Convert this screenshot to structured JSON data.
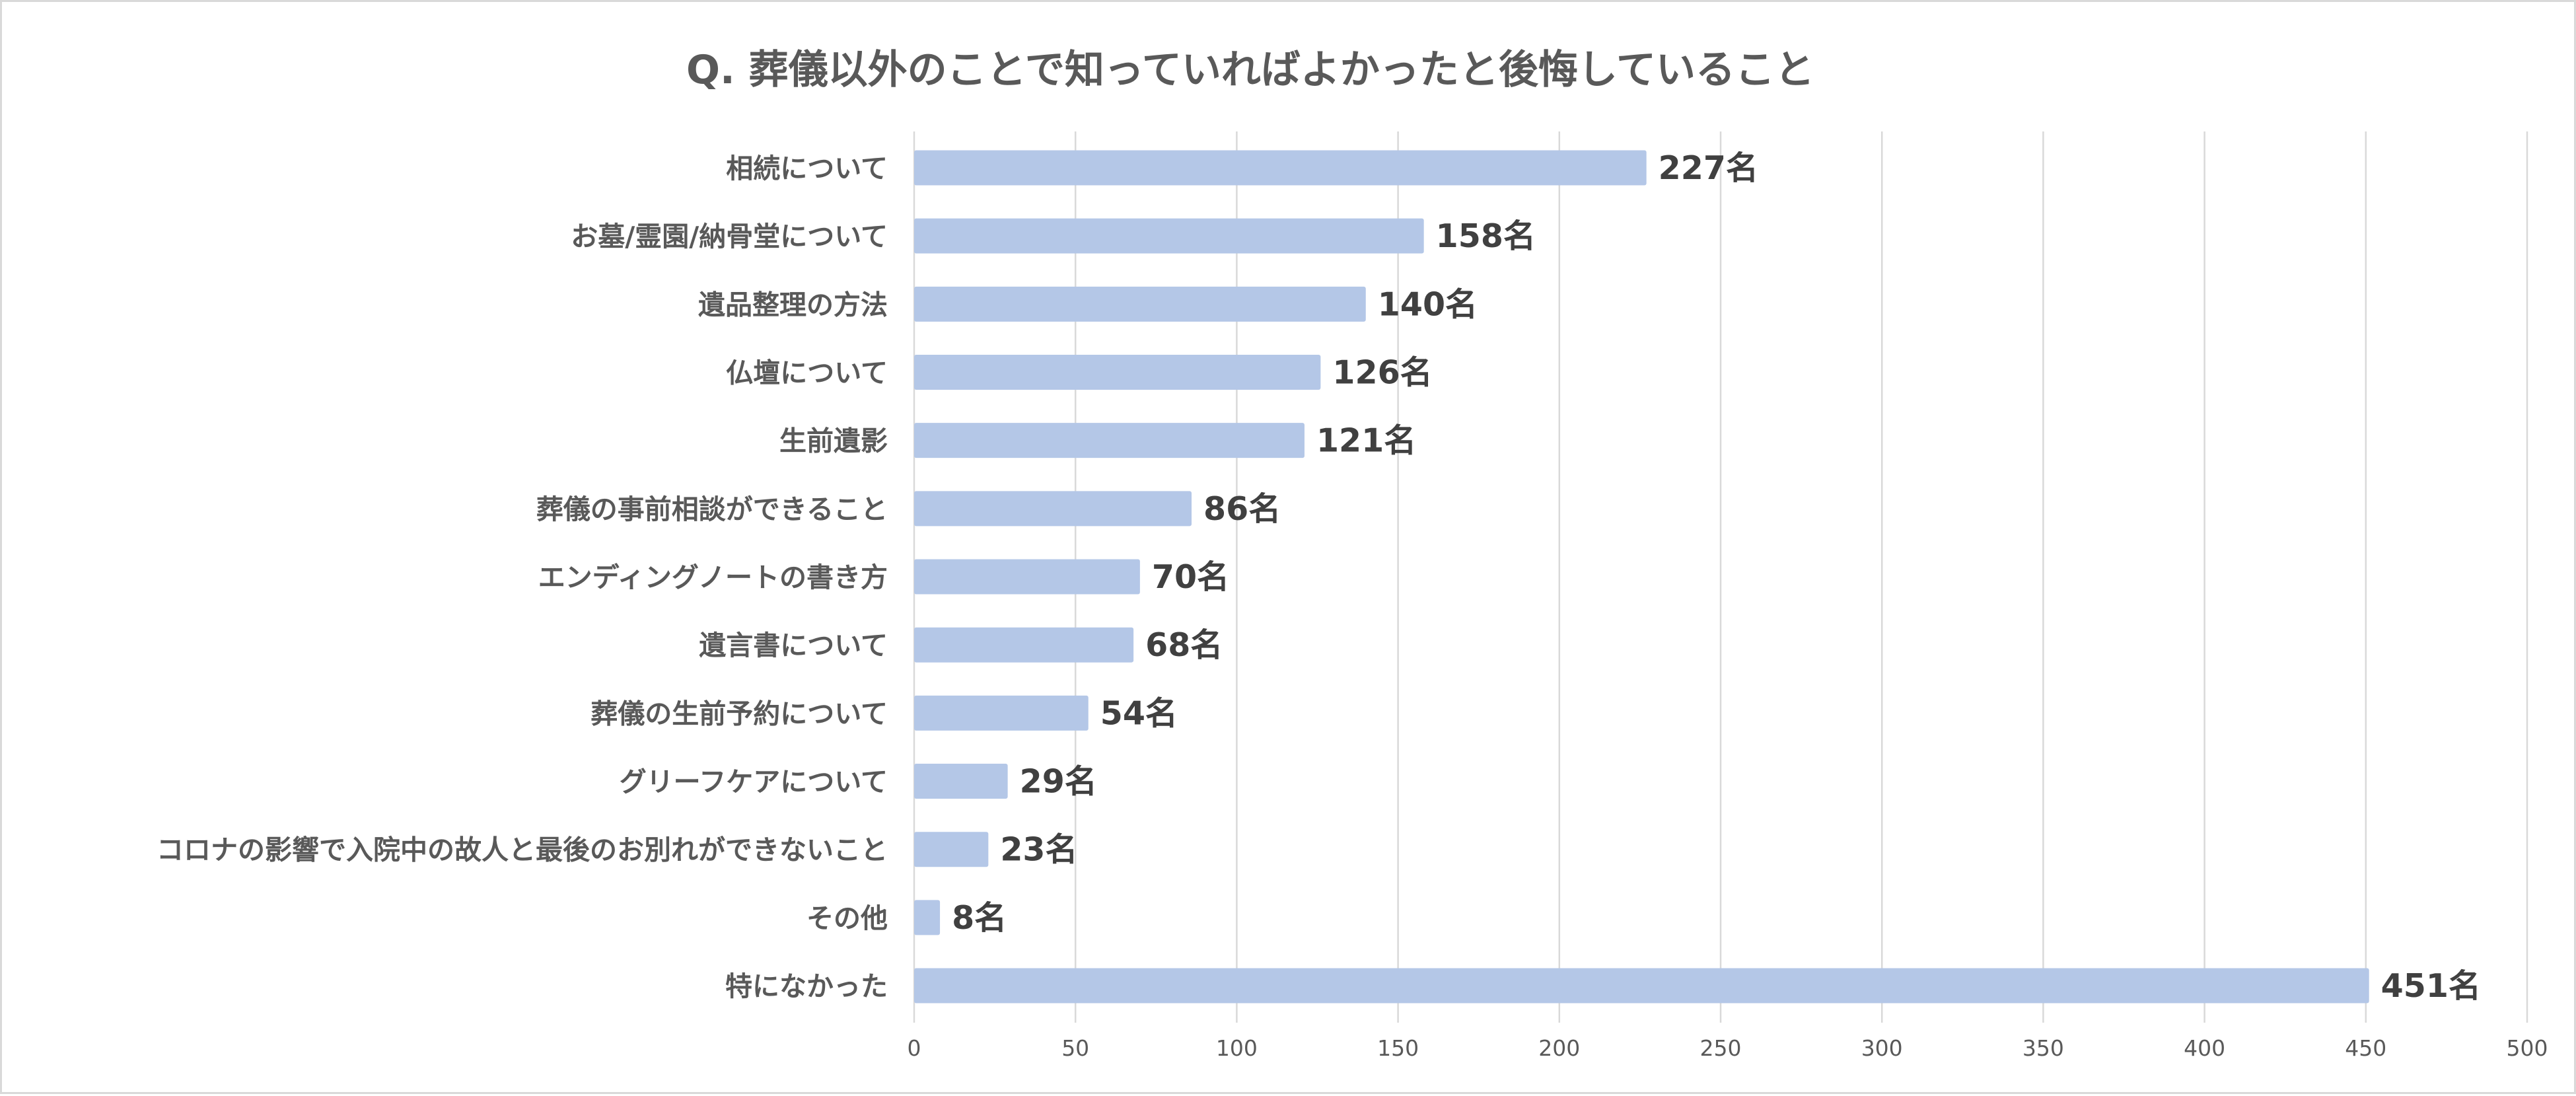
{
  "chart_data": {
    "type": "bar",
    "orientation": "horizontal",
    "title": "Q. 葬儀以外のことで知っていればよかったと後悔していること",
    "categories": [
      "相続について",
      "お墓/霊園/納骨堂について",
      "遺品整理の方法",
      "仏壇について",
      "生前遺影",
      "葬儀の事前相談ができること",
      "エンディングノートの書き方",
      "遺言書について",
      "葬儀の生前予約について",
      "グリーフケアについて",
      "コロナの影響で入院中の故人と最後のお別れができないこと",
      "その他",
      "特になかった"
    ],
    "values": [
      227,
      158,
      140,
      126,
      121,
      86,
      70,
      68,
      54,
      29,
      23,
      8,
      451
    ],
    "data_labels": [
      "227名",
      "158名",
      "140名",
      "126名",
      "121名",
      "86名",
      "70名",
      "68名",
      "54名",
      "29名",
      "23名",
      "8名",
      "451名"
    ],
    "unit_suffix": "名",
    "xlim": [
      0,
      500
    ],
    "x_ticks": [
      0,
      50,
      100,
      150,
      200,
      250,
      300,
      350,
      400,
      450,
      500
    ],
    "x_tick_labels": [
      "0",
      "50",
      "100",
      "150",
      "200",
      "250",
      "300",
      "350",
      "400",
      "450",
      "500"
    ],
    "xlabel": "",
    "ylabel": "",
    "grid": "vertical",
    "legend": "none",
    "bar_color": "#b4c7e7"
  }
}
